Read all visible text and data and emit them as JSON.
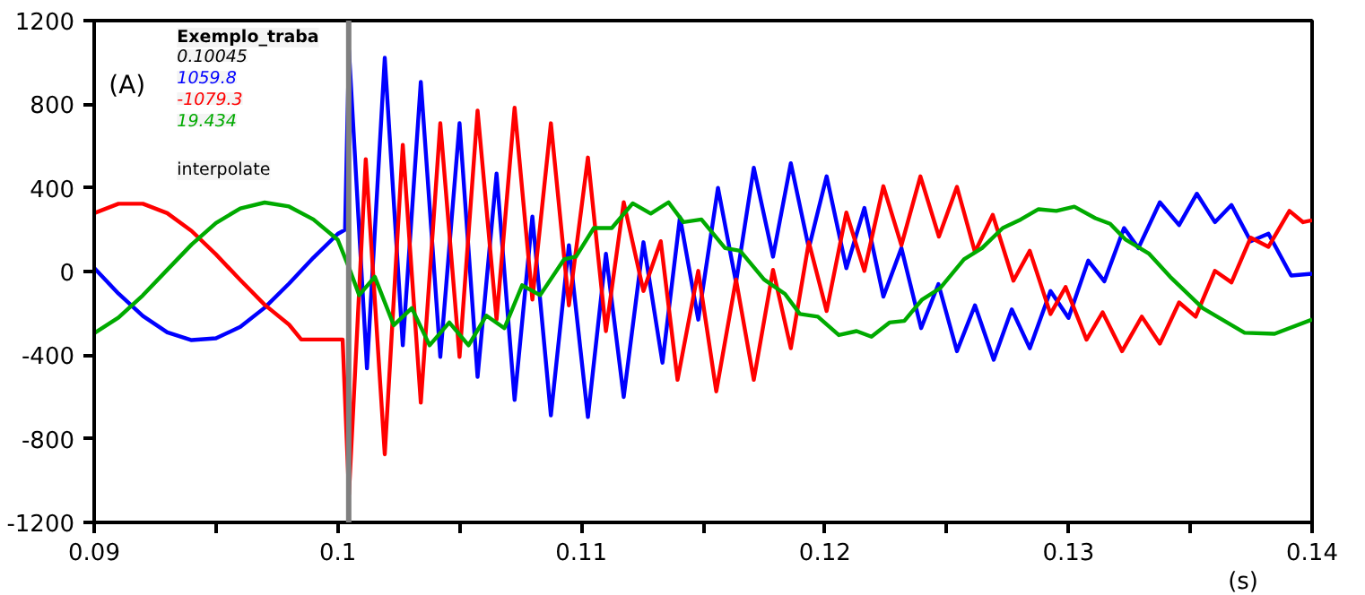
{
  "chart_data": {
    "type": "line",
    "xlabel": "(s)",
    "ylabel": "(A)",
    "xlim": [
      0.09,
      0.14
    ],
    "ylim": [
      -1200,
      1200
    ],
    "xticks": [
      0.09,
      {
        "value": 0.095,
        "label": null
      },
      0.1,
      {
        "value": 0.105,
        "label": null
      },
      0.11,
      {
        "value": 0.115,
        "label": null
      },
      0.12,
      {
        "value": 0.125,
        "label": null
      },
      0.13,
      {
        "value": 0.135,
        "label": null
      },
      0.14
    ],
    "yticks": [
      -1200,
      -800,
      -400,
      0,
      400,
      800,
      1200
    ],
    "grid": false,
    "marker": "none",
    "line_style": "solid",
    "annotations": [
      "Exemplo_traba",
      "0.10045",
      "1059.8",
      "-1079.3",
      "19.434",
      "interpolate"
    ],
    "ref_lines": [
      {
        "axis": "x",
        "value": 0.10045,
        "label": null,
        "color": "#808080"
      }
    ],
    "series": [
      {
        "color": "#0000ff",
        "x": [
          0.09,
          0.091,
          0.092,
          0.093,
          0.094,
          0.095,
          0.096,
          0.097,
          0.098,
          0.099,
          0.1,
          0.1003,
          0.10046,
          0.1012,
          0.10193,
          0.10267,
          0.10341,
          0.10421,
          0.105,
          0.10574,
          0.10652,
          0.10726,
          0.10799,
          0.10875,
          0.10949,
          0.11027,
          0.11101,
          0.11174,
          0.11255,
          0.11333,
          0.11405,
          0.1148,
          0.11561,
          0.11635,
          0.11708,
          0.11787,
          0.1186,
          0.11934,
          0.12007,
          0.12088,
          0.12162,
          0.1224,
          0.12314,
          0.12395,
          0.12466,
          0.12542,
          0.12616,
          0.12693,
          0.12767,
          0.12841,
          0.12926,
          0.13,
          0.13081,
          0.13147,
          0.13228,
          0.13287,
          0.13375,
          0.13454,
          0.13527,
          0.13601,
          0.13669,
          0.13748,
          0.13821,
          0.13914,
          0.14
        ],
        "values": [
          17,
          -106,
          -213,
          -291,
          -328,
          -319,
          -265,
          -173,
          -58,
          66,
          180,
          200,
          1058,
          -463,
          1022,
          -353,
          907,
          -408,
          709,
          -504,
          468,
          -614,
          263,
          -688,
          126,
          -696,
          85,
          -600,
          140,
          -436,
          260,
          -230,
          400,
          -52,
          496,
          71,
          518,
          112,
          455,
          16,
          304,
          -120,
          112,
          -271,
          -60,
          -381,
          -162,
          -422,
          -181,
          -367,
          -93,
          -222,
          52,
          -47,
          208,
          112,
          331,
          222,
          372,
          236,
          318,
          145,
          181,
          -19,
          -11
        ]
      },
      {
        "color": "#ff0000",
        "x": [
          0.09,
          0.091,
          0.092,
          0.093,
          0.094,
          0.095,
          0.096,
          0.097,
          0.098,
          0.0985,
          0.1002,
          0.10046,
          0.10115,
          0.10193,
          0.10267,
          0.10341,
          0.10421,
          0.105,
          0.10574,
          0.10652,
          0.10726,
          0.10799,
          0.10875,
          0.10949,
          0.11027,
          0.11101,
          0.11174,
          0.11255,
          0.11326,
          0.11395,
          0.1148,
          0.11554,
          0.11635,
          0.11708,
          0.11787,
          0.1186,
          0.11934,
          0.12007,
          0.12088,
          0.12162,
          0.1224,
          0.12314,
          0.12392,
          0.12468,
          0.12542,
          0.12616,
          0.12689,
          0.12774,
          0.12841,
          0.12926,
          0.12988,
          0.13074,
          0.1314,
          0.1322,
          0.13301,
          0.13375,
          0.13454,
          0.13522,
          0.13601,
          0.13669,
          0.13748,
          0.13821,
          0.13907,
          0.13963,
          0.14
        ],
        "values": [
          279,
          324,
          324,
          279,
          194,
          82,
          -41,
          -159,
          -254,
          -325,
          -325,
          -1066,
          537,
          -874,
          606,
          -627,
          709,
          -408,
          770,
          -230,
          783,
          -134,
          709,
          -162,
          545,
          -285,
          331,
          -93,
          145,
          -518,
          3,
          -573,
          -38,
          -518,
          8,
          -367,
          140,
          -189,
          282,
          3,
          408,
          126,
          455,
          167,
          405,
          93,
          271,
          -44,
          99,
          -203,
          -74,
          -326,
          -195,
          -381,
          -216,
          -345,
          -148,
          -216,
          3,
          -52,
          162,
          118,
          290,
          236,
          245
        ]
      },
      {
        "color": "#00aa00",
        "x": [
          0.09,
          0.091,
          0.092,
          0.093,
          0.094,
          0.095,
          0.096,
          0.097,
          0.098,
          0.099,
          0.1,
          0.10046,
          0.10088,
          0.10152,
          0.1023,
          0.10304,
          0.10377,
          0.10458,
          0.10537,
          0.1061,
          0.10684,
          0.10757,
          0.10831,
          0.10929,
          0.10978,
          0.11051,
          0.11125,
          0.11211,
          0.11285,
          0.11358,
          0.11419,
          0.11493,
          0.1159,
          0.11652,
          0.1175,
          0.11836,
          0.11897,
          0.11971,
          0.12057,
          0.1213,
          0.12191,
          0.12265,
          0.12326,
          0.12399,
          0.12473,
          0.12571,
          0.12645,
          0.1273,
          0.12804,
          0.12877,
          0.1295,
          0.13024,
          0.1311,
          0.13171,
          0.13233,
          0.13331,
          0.13417,
          0.13551,
          0.13723,
          0.13846,
          0.14
        ],
        "values": [
          -295,
          -220,
          -114,
          8,
          129,
          232,
          302,
          330,
          311,
          249,
          152,
          19,
          -113,
          -25,
          -257,
          -175,
          -353,
          -244,
          -353,
          -211,
          -271,
          -66,
          -113,
          58,
          71,
          208,
          208,
          326,
          277,
          331,
          236,
          249,
          112,
          99,
          -38,
          -107,
          -203,
          -216,
          -304,
          -285,
          -312,
          -244,
          -236,
          -134,
          -80,
          58,
          112,
          208,
          249,
          298,
          290,
          310,
          255,
          228,
          154,
          85,
          -25,
          -175,
          -293,
          -298,
          -230
        ]
      }
    ]
  }
}
